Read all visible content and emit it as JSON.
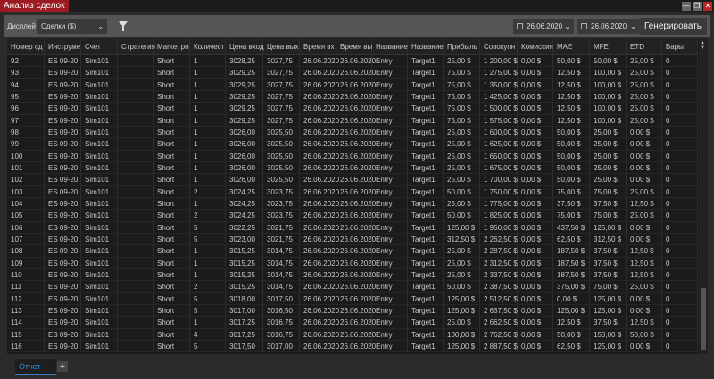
{
  "window": {
    "title": "Анализ сделок",
    "minimize": "—",
    "restore": "❐",
    "close": "✕"
  },
  "toolbar": {
    "display_label": "Дисплей",
    "display_value": "Сделки ($)",
    "from_date": "26.06.2020",
    "to_date": "26.06.2020",
    "generate_label": "Генерировать"
  },
  "table": {
    "headers": [
      "Номер сд",
      "Инструме",
      "Счет",
      "Стратегия",
      "Market po",
      "Количест",
      "Цена вход",
      "Цена вых",
      "Время вх",
      "Время вы",
      "Название",
      "Название",
      "Прибыль",
      "Совокупн",
      "Комиссия",
      "MAE",
      "MFE",
      "ETD",
      "Бары"
    ],
    "rows": [
      [
        "92",
        "ES 09-20",
        "Sim101",
        "",
        "Short",
        "1",
        "3028,25",
        "3027,75",
        "26.06.2020",
        "26.06.2020",
        "Entry",
        "Target1",
        "25,00 $",
        "1 200,00 $",
        "0,00 $",
        "50,00 $",
        "50,00 $",
        "25,00 $",
        "0"
      ],
      [
        "93",
        "ES 09-20",
        "Sim101",
        "",
        "Short",
        "1",
        "3029,25",
        "3027,75",
        "26.06.2020",
        "26.06.2020",
        "Entry",
        "Target1",
        "75,00 $",
        "1 275,00 $",
        "0,00 $",
        "12,50 $",
        "100,00 $",
        "25,00 $",
        "0"
      ],
      [
        "94",
        "ES 09-20",
        "Sim101",
        "",
        "Short",
        "1",
        "3029,25",
        "3027,75",
        "26.06.2020",
        "26.06.2020",
        "Entry",
        "Target1",
        "75,00 $",
        "1 350,00 $",
        "0,00 $",
        "12,50 $",
        "100,00 $",
        "25,00 $",
        "0"
      ],
      [
        "95",
        "ES 09-20",
        "Sim101",
        "",
        "Short",
        "1",
        "3029,25",
        "3027,75",
        "26.06.2020",
        "26.06.2020",
        "Entry",
        "Target1",
        "75,00 $",
        "1 425,00 $",
        "0,00 $",
        "12,50 $",
        "100,00 $",
        "25,00 $",
        "0"
      ],
      [
        "96",
        "ES 09-20",
        "Sim101",
        "",
        "Short",
        "1",
        "3029,25",
        "3027,75",
        "26.06.2020",
        "26.06.2020",
        "Entry",
        "Target1",
        "75,00 $",
        "1 500,00 $",
        "0,00 $",
        "12,50 $",
        "100,00 $",
        "25,00 $",
        "0"
      ],
      [
        "97",
        "ES 09-20",
        "Sim101",
        "",
        "Short",
        "1",
        "3029,25",
        "3027,75",
        "26.06.2020",
        "26.06.2020",
        "Entry",
        "Target1",
        "75,00 $",
        "1 575,00 $",
        "0,00 $",
        "12,50 $",
        "100,00 $",
        "25,00 $",
        "0"
      ],
      [
        "98",
        "ES 09-20",
        "Sim101",
        "",
        "Short",
        "1",
        "3026,00",
        "3025,50",
        "26.06.2020",
        "26.06.2020",
        "Entry",
        "Target1",
        "25,00 $",
        "1 600,00 $",
        "0,00 $",
        "50,00 $",
        "25,00 $",
        "0,00 $",
        "0"
      ],
      [
        "99",
        "ES 09-20",
        "Sim101",
        "",
        "Short",
        "1",
        "3026,00",
        "3025,50",
        "26.06.2020",
        "26.06.2020",
        "Entry",
        "Target1",
        "25,00 $",
        "1 625,00 $",
        "0,00 $",
        "50,00 $",
        "25,00 $",
        "0,00 $",
        "0"
      ],
      [
        "100",
        "ES 09-20",
        "Sim101",
        "",
        "Short",
        "1",
        "3026,00",
        "3025,50",
        "26.06.2020",
        "26.06.2020",
        "Entry",
        "Target1",
        "25,00 $",
        "1 650,00 $",
        "0,00 $",
        "50,00 $",
        "25,00 $",
        "0,00 $",
        "0"
      ],
      [
        "101",
        "ES 09-20",
        "Sim101",
        "",
        "Short",
        "1",
        "3026,00",
        "3025,50",
        "26.06.2020",
        "26.06.2020",
        "Entry",
        "Target1",
        "25,00 $",
        "1 675,00 $",
        "0,00 $",
        "50,00 $",
        "25,00 $",
        "0,00 $",
        "0"
      ],
      [
        "102",
        "ES 09-20",
        "Sim101",
        "",
        "Short",
        "1",
        "3026,00",
        "3025,50",
        "26.06.2020",
        "26.06.2020",
        "Entry",
        "Target1",
        "25,00 $",
        "1 700,00 $",
        "0,00 $",
        "50,00 $",
        "25,00 $",
        "0,00 $",
        "0"
      ],
      [
        "103",
        "ES 09-20",
        "Sim101",
        "",
        "Short",
        "2",
        "3024,25",
        "3023,75",
        "26.06.2020",
        "26.06.2020",
        "Entry",
        "Target1",
        "50,00 $",
        "1 750,00 $",
        "0,00 $",
        "75,00 $",
        "75,00 $",
        "25,00 $",
        "0"
      ],
      [
        "104",
        "ES 09-20",
        "Sim101",
        "",
        "Short",
        "1",
        "3024,25",
        "3023,75",
        "26.06.2020",
        "26.06.2020",
        "Entry",
        "Target1",
        "25,00 $",
        "1 775,00 $",
        "0,00 $",
        "37,50 $",
        "37,50 $",
        "12,50 $",
        "0"
      ],
      [
        "105",
        "ES 09-20",
        "Sim101",
        "",
        "Short",
        "2",
        "3024,25",
        "3023,75",
        "26.06.2020",
        "26.06.2020",
        "Entry",
        "Target1",
        "50,00 $",
        "1 825,00 $",
        "0,00 $",
        "75,00 $",
        "75,00 $",
        "25,00 $",
        "0"
      ],
      [
        "106",
        "ES 09-20",
        "Sim101",
        "",
        "Short",
        "5",
        "3022,25",
        "3021,75",
        "26.06.2020",
        "26.06.2020",
        "Entry",
        "Target1",
        "125,00 $",
        "1 950,00 $",
        "0,00 $",
        "437,50 $",
        "125,00 $",
        "0,00 $",
        "0"
      ],
      [
        "107",
        "ES 09-20",
        "Sim101",
        "",
        "Short",
        "5",
        "3023,00",
        "3021,75",
        "26.06.2020",
        "26.06.2020",
        "Entry",
        "Target1",
        "312,50 $",
        "2 262,50 $",
        "0,00 $",
        "62,50 $",
        "312,50 $",
        "0,00 $",
        "0"
      ],
      [
        "108",
        "ES 09-20",
        "Sim101",
        "",
        "Short",
        "1",
        "3015,25",
        "3014,75",
        "26.06.2020",
        "26.06.2020",
        "Entry",
        "Target1",
        "25,00 $",
        "2 287,50 $",
        "0,00 $",
        "187,50 $",
        "37,50 $",
        "12,50 $",
        "0"
      ],
      [
        "109",
        "ES 09-20",
        "Sim101",
        "",
        "Short",
        "1",
        "3015,25",
        "3014,75",
        "26.06.2020",
        "26.06.2020",
        "Entry",
        "Target1",
        "25,00 $",
        "2 312,50 $",
        "0,00 $",
        "187,50 $",
        "37,50 $",
        "12,50 $",
        "0"
      ],
      [
        "110",
        "ES 09-20",
        "Sim101",
        "",
        "Short",
        "1",
        "3015,25",
        "3014,75",
        "26.06.2020",
        "26.06.2020",
        "Entry",
        "Target1",
        "25,00 $",
        "2 337,50 $",
        "0,00 $",
        "187,50 $",
        "37,50 $",
        "12,50 $",
        "0"
      ],
      [
        "111",
        "ES 09-20",
        "Sim101",
        "",
        "Short",
        "2",
        "3015,25",
        "3014,75",
        "26.06.2020",
        "26.06.2020",
        "Entry",
        "Target1",
        "50,00 $",
        "2 387,50 $",
        "0,00 $",
        "375,00 $",
        "75,00 $",
        "25,00 $",
        "0"
      ],
      [
        "112",
        "ES 09-20",
        "Sim101",
        "",
        "Short",
        "5",
        "3018,00",
        "3017,50",
        "26.06.2020",
        "26.06.2020",
        "Entry",
        "Target1",
        "125,00 $",
        "2 512,50 $",
        "0,00 $",
        "0,00 $",
        "125,00 $",
        "0,00 $",
        "0"
      ],
      [
        "113",
        "ES 09-20",
        "Sim101",
        "",
        "Short",
        "5",
        "3017,00",
        "3016,50",
        "26.06.2020",
        "26.06.2020",
        "Entry",
        "Target1",
        "125,00 $",
        "2 637,50 $",
        "0,00 $",
        "125,00 $",
        "125,00 $",
        "0,00 $",
        "0"
      ],
      [
        "114",
        "ES 09-20",
        "Sim101",
        "",
        "Short",
        "1",
        "3017,25",
        "3016,75",
        "26.06.2020",
        "26.06.2020",
        "Entry",
        "Target1",
        "25,00 $",
        "2 662,50 $",
        "0,00 $",
        "12,50 $",
        "37,50 $",
        "12,50 $",
        "0"
      ],
      [
        "115",
        "ES 09-20",
        "Sim101",
        "",
        "Short",
        "4",
        "3017,25",
        "3016,75",
        "26.06.2020",
        "26.06.2020",
        "Entry",
        "Target1",
        "100,00 $",
        "2 762,50 $",
        "0,00 $",
        "50,00 $",
        "150,00 $",
        "50,00 $",
        "0"
      ],
      [
        "116",
        "ES 09-20",
        "Sim101",
        "",
        "Short",
        "5",
        "3017,50",
        "3017,00",
        "26.06.2020",
        "26.06.2020",
        "Entry",
        "Target1",
        "125,00 $",
        "2 887,50 $",
        "0,00 $",
        "62,50 $",
        "125,00 $",
        "0,00 $",
        "0"
      ]
    ]
  },
  "tabs": [
    {
      "label": "Отчет",
      "active": true
    }
  ],
  "add_tab": "+",
  "colors": {
    "title_accent": "#9c1b22",
    "tab_accent": "#3a8ad8"
  }
}
